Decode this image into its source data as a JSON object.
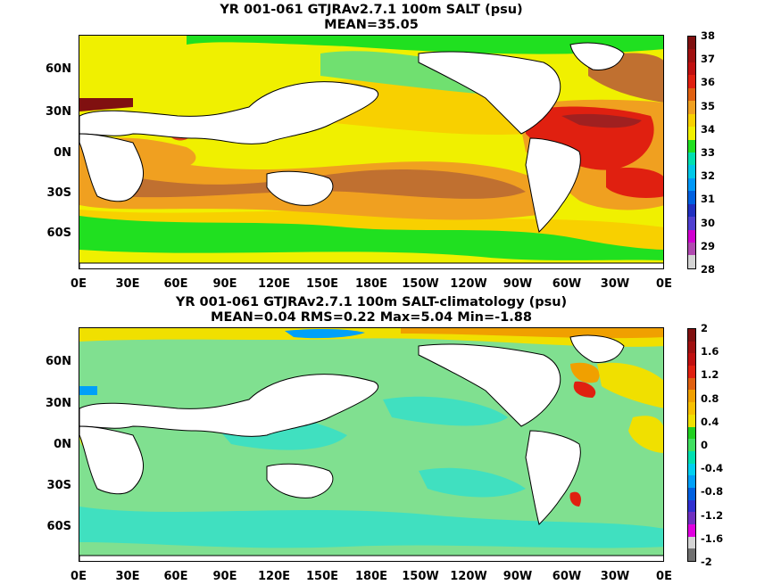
{
  "chart_data": [
    {
      "type": "heatmap",
      "title": "YR 001-061 GTJRAv2.7.1 100m SALT (psu)",
      "subtitle": "MEAN=35.05",
      "x_ticks": [
        "0E",
        "30E",
        "60E",
        "90E",
        "120E",
        "150E",
        "180E",
        "150W",
        "120W",
        "90W",
        "60W",
        "30W",
        "0E"
      ],
      "y_ticks": [
        "60N",
        "30N",
        "0N",
        "30S",
        "60S"
      ],
      "colorbar": {
        "ticks": [
          "38",
          "37",
          "36",
          "35",
          "34",
          "33",
          "32",
          "31",
          "30",
          "29",
          "28"
        ],
        "colors": [
          "#d4d4d4",
          "#b04ab0",
          "#d000d0",
          "#5040d0",
          "#2030c0",
          "#0060e0",
          "#0098f8",
          "#00c8e8",
          "#00e0b0",
          "#20e020",
          "#f0f000",
          "#f8d000",
          "#f0a020",
          "#e06010",
          "#e02010",
          "#c01010",
          "#a01010",
          "#801010"
        ]
      }
    },
    {
      "type": "heatmap",
      "title": "YR 001-061 GTJRAv2.7.1 100m SALT-climatology (psu)",
      "subtitle": "MEAN=0.04   RMS=0.22   Max=5.04   Min=-1.88",
      "x_ticks": [
        "0E",
        "30E",
        "60E",
        "90E",
        "120E",
        "150E",
        "180E",
        "150W",
        "120W",
        "90W",
        "60W",
        "30W",
        "0E"
      ],
      "y_ticks": [
        "60N",
        "30N",
        "0N",
        "30S",
        "60S"
      ],
      "colorbar": {
        "ticks": [
          "2",
          "1.6",
          "1.2",
          "0.8",
          "0.4",
          "0",
          "-0.4",
          "-0.8",
          "-1.2",
          "-1.6",
          "-2"
        ],
        "colors": [
          "#707070",
          "#d4d4d4",
          "#e000e0",
          "#7030c0",
          "#3030d0",
          "#0060e0",
          "#00a0f8",
          "#00d0f0",
          "#00e0b0",
          "#40e060",
          "#20d020",
          "#f0e000",
          "#f8c000",
          "#f0a000",
          "#e06010",
          "#e02010",
          "#c01010",
          "#a01010",
          "#801010"
        ]
      }
    }
  ]
}
